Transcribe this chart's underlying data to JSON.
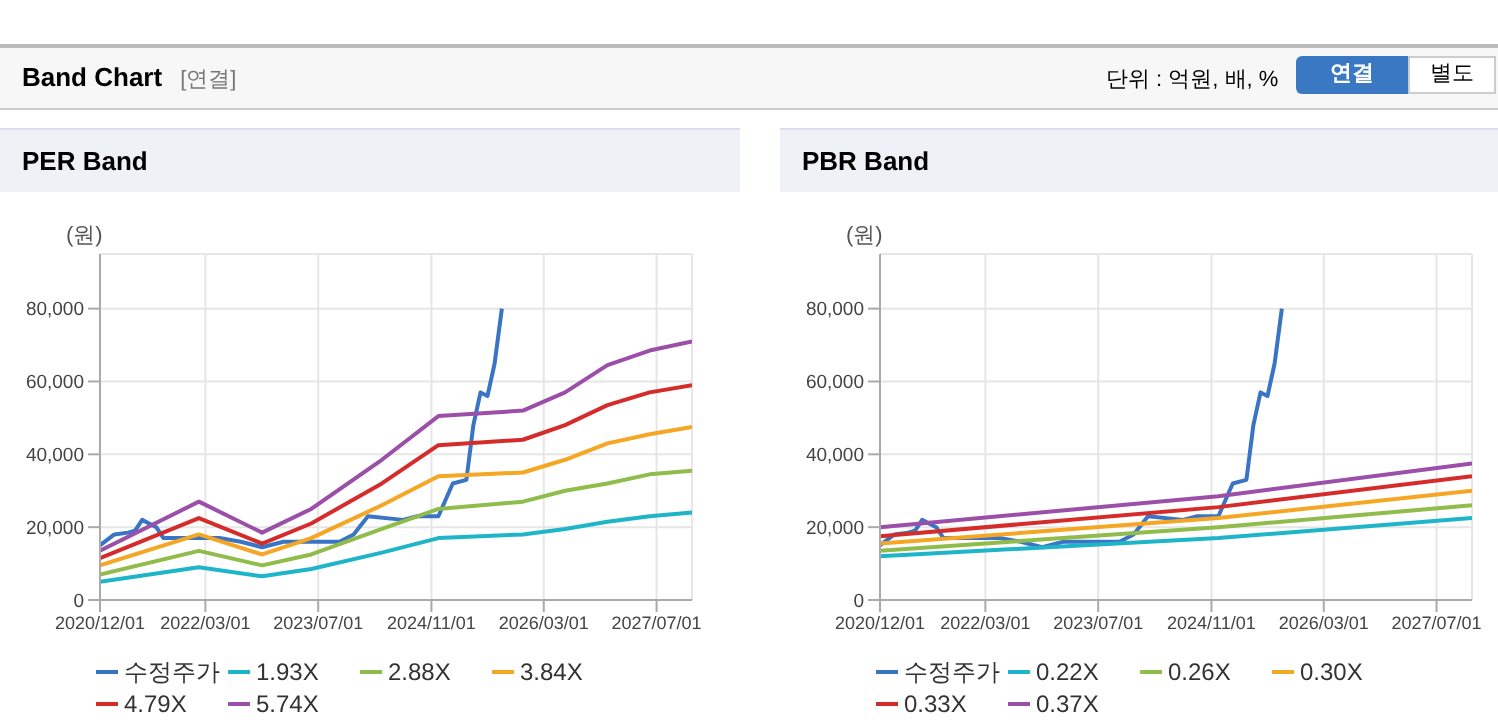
{
  "chart_data": [
    {
      "type": "other",
      "title": "Band Chart",
      "annotations": [
        "[연결]",
        "단위 : 억원, 배, %",
        "연결",
        "별도"
      ]
    },
    {
      "type": "line",
      "title": "PER Band",
      "ylabel": "(원)",
      "xlim": [
        "2020-12",
        "2027-12"
      ],
      "ylim": [
        0,
        95000
      ],
      "xticks": [
        {
          "value": "2020-12-01",
          "label": "2020/12/01"
        },
        {
          "value": "2022-03-01",
          "label": "2022/03/01"
        },
        {
          "value": "2023-07-01",
          "label": "2023/07/01"
        },
        {
          "value": "2024-11-01",
          "label": "2024/11/01"
        },
        {
          "value": "2026-03-01",
          "label": "2026/03/01"
        },
        {
          "value": "2027-07-01",
          "label": "2027/07/01"
        }
      ],
      "yticks": [
        {
          "value": 0,
          "label": "0"
        },
        {
          "value": 20000,
          "label": "20,000"
        },
        {
          "value": 40000,
          "label": "40,000"
        },
        {
          "value": 60000,
          "label": "60,000"
        },
        {
          "value": 80000,
          "label": "80,000"
        }
      ],
      "grid": true,
      "legend": "bottom",
      "line_style": "solid",
      "x": [
        "2020-12",
        "2022-02",
        "2022-11",
        "2023-06",
        "2024-04",
        "2024-12",
        "2025-12",
        "2026-06",
        "2026-12",
        "2027-06",
        "2027-12"
      ],
      "series": [
        {
          "name": "수정주가",
          "color": "#3a74c4",
          "x": [
            "2020-12",
            "2021-02",
            "2021-04",
            "2021-05",
            "2021-06",
            "2021-08",
            "2021-09",
            "2021-12",
            "2022-03",
            "2022-05",
            "2022-08",
            "2022-11",
            "2023-02",
            "2023-06",
            "2023-10",
            "2023-12",
            "2024-02",
            "2024-07",
            "2024-09",
            "2024-12",
            "2025-02",
            "2025-04",
            "2025-05",
            "2025-06",
            "2025-07",
            "2025-08",
            "2025-09"
          ],
          "values": [
            15000,
            18000,
            18500,
            19000,
            22000,
            20000,
            17000,
            17000,
            17000,
            17000,
            16000,
            14500,
            16000,
            16000,
            16000,
            18000,
            23000,
            22000,
            23000,
            23000,
            32000,
            33000,
            48000,
            57000,
            56000,
            65000,
            80000
          ]
        },
        {
          "name": "1.93X",
          "color": "#1fb5c8",
          "values": [
            5000,
            9000,
            6500,
            8500,
            13000,
            17000,
            18000,
            19500,
            21500,
            23000,
            24000
          ]
        },
        {
          "name": "2.88X",
          "color": "#8fbc4a",
          "values": [
            7000,
            13500,
            9500,
            12500,
            19500,
            25000,
            27000,
            30000,
            32000,
            34500,
            35500
          ]
        },
        {
          "name": "3.84X",
          "color": "#f5a623",
          "values": [
            9500,
            18000,
            12500,
            17000,
            26000,
            34000,
            35000,
            38500,
            43000,
            45500,
            47500
          ]
        },
        {
          "name": "4.79X",
          "color": "#d62b2b",
          "values": [
            11500,
            22500,
            15500,
            21000,
            32000,
            42500,
            44000,
            48000,
            53500,
            57000,
            59000
          ]
        },
        {
          "name": "5.74X",
          "color": "#9b4fa8",
          "values": [
            13500,
            27000,
            18500,
            25000,
            38500,
            50500,
            52000,
            57000,
            64500,
            68500,
            71000
          ]
        }
      ]
    },
    {
      "type": "line",
      "title": "PBR Band",
      "ylabel": "(원)",
      "xlim": [
        "2020-12",
        "2027-12"
      ],
      "ylim": [
        0,
        95000
      ],
      "xticks": [
        {
          "value": "2020-12-01",
          "label": "2020/12/01"
        },
        {
          "value": "2022-03-01",
          "label": "2022/03/01"
        },
        {
          "value": "2023-07-01",
          "label": "2023/07/01"
        },
        {
          "value": "2024-11-01",
          "label": "2024/11/01"
        },
        {
          "value": "2026-03-01",
          "label": "2026/03/01"
        },
        {
          "value": "2027-07-01",
          "label": "2027/07/01"
        }
      ],
      "yticks": [
        {
          "value": 0,
          "label": "0"
        },
        {
          "value": 20000,
          "label": "20,000"
        },
        {
          "value": 40000,
          "label": "40,000"
        },
        {
          "value": 60000,
          "label": "60,000"
        },
        {
          "value": 80000,
          "label": "80,000"
        }
      ],
      "grid": true,
      "legend": "bottom",
      "line_style": "solid",
      "x": [
        "2020-12",
        "2024-12",
        "2027-12"
      ],
      "series": [
        {
          "name": "수정주가",
          "color": "#3a74c4",
          "x": [
            "2020-12",
            "2021-02",
            "2021-04",
            "2021-05",
            "2021-06",
            "2021-08",
            "2021-09",
            "2021-12",
            "2022-03",
            "2022-05",
            "2022-08",
            "2022-11",
            "2023-02",
            "2023-06",
            "2023-10",
            "2023-12",
            "2024-02",
            "2024-07",
            "2024-09",
            "2024-12",
            "2025-02",
            "2025-04",
            "2025-05",
            "2025-06",
            "2025-07",
            "2025-08",
            "2025-09"
          ],
          "values": [
            15000,
            18000,
            18500,
            19000,
            22000,
            20000,
            17000,
            17000,
            17000,
            17000,
            16000,
            14500,
            16000,
            16000,
            16000,
            18000,
            23000,
            22000,
            23000,
            23000,
            32000,
            33000,
            48000,
            57000,
            56000,
            65000,
            80000
          ]
        },
        {
          "name": "0.22X",
          "color": "#1fb5c8",
          "values": [
            12000,
            17000,
            22500
          ]
        },
        {
          "name": "0.26X",
          "color": "#8fbc4a",
          "values": [
            13500,
            20000,
            26000
          ]
        },
        {
          "name": "0.30X",
          "color": "#f5a623",
          "values": [
            15500,
            22500,
            30000
          ]
        },
        {
          "name": "0.33X",
          "color": "#d62b2b",
          "values": [
            17500,
            25500,
            34000
          ]
        },
        {
          "name": "0.37X",
          "color": "#9b4fa8",
          "values": [
            20000,
            28500,
            37500
          ]
        }
      ]
    }
  ]
}
